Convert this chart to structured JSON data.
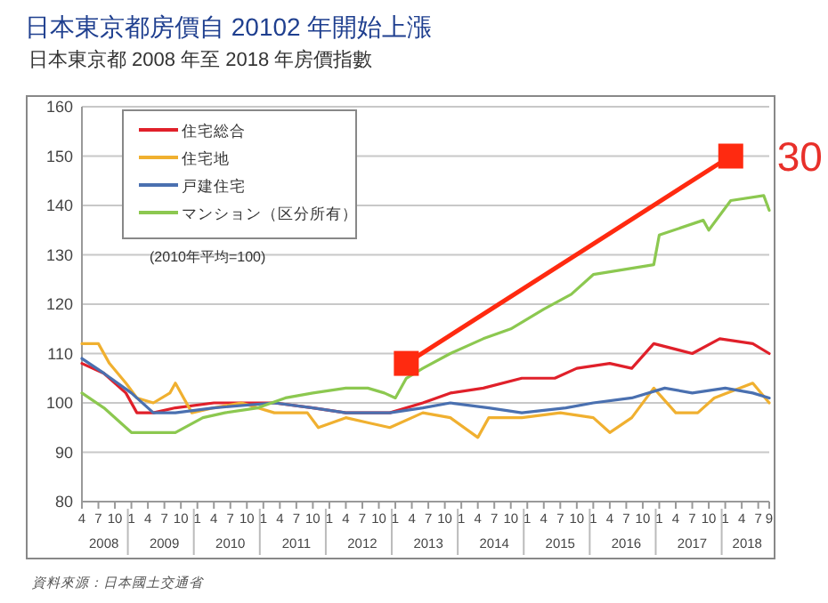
{
  "chart_data": {
    "type": "line",
    "title": "日本東京都房價自 20102 年開始上漲",
    "subtitle": "日本東京都  2008  年至 2018 年房價指數",
    "annotations": [
      "(2010年平均=100)",
      {
        "text": "30",
        "x": "2018-02",
        "y": 150
      },
      "資料來源：日本國土交通省"
    ],
    "xlim": [
      "2008-04",
      "2018-09"
    ],
    "ylim": [
      80,
      160
    ],
    "yticks": [
      80,
      90,
      100,
      110,
      120,
      130,
      140,
      150,
      160
    ],
    "xticks": [
      {
        "value": "2008-04",
        "label": "4"
      },
      {
        "value": "2008-07",
        "label": "7"
      },
      {
        "value": "2008-10",
        "label": "10"
      },
      {
        "value": "2009-01",
        "label": "1"
      },
      {
        "value": "2009-04",
        "label": "4"
      },
      {
        "value": "2009-07",
        "label": "7"
      },
      {
        "value": "2009-10",
        "label": "10"
      },
      {
        "value": "2010-01",
        "label": "1"
      },
      {
        "value": "2010-04",
        "label": "4"
      },
      {
        "value": "2010-07",
        "label": "7"
      },
      {
        "value": "2010-10",
        "label": "10"
      },
      {
        "value": "2011-01",
        "label": "1"
      },
      {
        "value": "2011-04",
        "label": "4"
      },
      {
        "value": "2011-07",
        "label": "7"
      },
      {
        "value": "2011-10",
        "label": "10"
      },
      {
        "value": "2012-01",
        "label": "1"
      },
      {
        "value": "2012-04",
        "label": "4"
      },
      {
        "value": "2012-07",
        "label": "7"
      },
      {
        "value": "2012-10",
        "label": "10"
      },
      {
        "value": "2013-01",
        "label": "1"
      },
      {
        "value": "2013-04",
        "label": "4"
      },
      {
        "value": "2013-07",
        "label": "7"
      },
      {
        "value": "2013-10",
        "label": "10"
      },
      {
        "value": "2014-01",
        "label": "1"
      },
      {
        "value": "2014-04",
        "label": "4"
      },
      {
        "value": "2014-07",
        "label": "7"
      },
      {
        "value": "2014-10",
        "label": "10"
      },
      {
        "value": "2015-01",
        "label": "1"
      },
      {
        "value": "2015-04",
        "label": "4"
      },
      {
        "value": "2015-07",
        "label": "7"
      },
      {
        "value": "2015-10",
        "label": "10"
      },
      {
        "value": "2016-01",
        "label": "1"
      },
      {
        "value": "2016-04",
        "label": "4"
      },
      {
        "value": "2016-07",
        "label": "7"
      },
      {
        "value": "2016-10",
        "label": "10"
      },
      {
        "value": "2017-01",
        "label": "1"
      },
      {
        "value": "2017-04",
        "label": "4"
      },
      {
        "value": "2017-07",
        "label": "7"
      },
      {
        "value": "2017-10",
        "label": "10"
      },
      {
        "value": "2018-01",
        "label": "1"
      },
      {
        "value": "2018-04",
        "label": "4"
      },
      {
        "value": "2018-07",
        "label": "7"
      },
      {
        "value": "2018-09",
        "label": "9"
      }
    ],
    "x2lim": [
      "2008-04",
      "2018-09"
    ],
    "x2ticks": [
      {
        "value": "2008-08",
        "label": "2008"
      },
      {
        "value": "2009-07",
        "label": "2009"
      },
      {
        "value": "2010-07",
        "label": "2010"
      },
      {
        "value": "2011-07",
        "label": "2011"
      },
      {
        "value": "2012-07",
        "label": "2012"
      },
      {
        "value": "2013-07",
        "label": "2013"
      },
      {
        "value": "2014-07",
        "label": "2014"
      },
      {
        "value": "2015-07",
        "label": "2015"
      },
      {
        "value": "2016-07",
        "label": "2016"
      },
      {
        "value": "2017-07",
        "label": "2017"
      },
      {
        "value": "2018-05",
        "label": "2018"
      }
    ],
    "grid": "y",
    "legend": "top left",
    "line_style": "solid",
    "series": [
      {
        "name": "住宅総合",
        "color": "#e0202a",
        "x": [
          "2008-04",
          "2008-08",
          "2008-12",
          "2009-02",
          "2009-05",
          "2009-09",
          "2010-04",
          "2011-03",
          "2011-10",
          "2012-04",
          "2012-12",
          "2013-06",
          "2013-11",
          "2014-05",
          "2014-12",
          "2015-06",
          "2015-10",
          "2016-04",
          "2016-08",
          "2016-12",
          "2017-07",
          "2017-12",
          "2018-06",
          "2018-09"
        ],
        "values": [
          108,
          106,
          102,
          98,
          98,
          99,
          100,
          100,
          99,
          98,
          98,
          100,
          102,
          103,
          105,
          105,
          107,
          108,
          107,
          112,
          110,
          113,
          112,
          110
        ]
      },
      {
        "name": "住宅地",
        "color": "#f0b030",
        "x": [
          "2008-04",
          "2008-07",
          "2008-09",
          "2008-12",
          "2009-02",
          "2009-05",
          "2009-08",
          "2009-09",
          "2009-12",
          "2010-04",
          "2010-09",
          "2011-03",
          "2011-09",
          "2011-11",
          "2012-04",
          "2012-08",
          "2012-12",
          "2013-06",
          "2013-11",
          "2014-04",
          "2014-06",
          "2014-12",
          "2015-07",
          "2016-01",
          "2016-04",
          "2016-08",
          "2016-12",
          "2017-04",
          "2017-08",
          "2017-11",
          "2018-06",
          "2018-09"
        ],
        "values": [
          112,
          112,
          108,
          104,
          101,
          100,
          102,
          104,
          98,
          99,
          100,
          98,
          98,
          95,
          97,
          96,
          95,
          98,
          97,
          93,
          97,
          97,
          98,
          97,
          94,
          97,
          103,
          98,
          98,
          101,
          104,
          100
        ]
      },
      {
        "name": "戸建住宅",
        "color": "#4a70b0",
        "x": [
          "2008-04",
          "2008-08",
          "2009-01",
          "2009-05",
          "2009-09",
          "2010-04",
          "2011-03",
          "2011-10",
          "2012-04",
          "2012-12",
          "2013-06",
          "2013-11",
          "2014-06",
          "2014-12",
          "2015-08",
          "2016-01",
          "2016-08",
          "2017-02",
          "2017-07",
          "2018-01",
          "2018-06",
          "2018-09"
        ],
        "values": [
          109,
          106,
          102,
          98,
          98,
          99,
          100,
          99,
          98,
          98,
          99,
          100,
          99,
          98,
          99,
          100,
          101,
          103,
          102,
          103,
          102,
          101
        ]
      },
      {
        "name": "マンション（区分所有）",
        "color": "#8cc850",
        "x": [
          "2008-04",
          "2008-08",
          "2009-01",
          "2009-05",
          "2009-09",
          "2010-02",
          "2010-06",
          "2010-12",
          "2011-05",
          "2011-10",
          "2012-04",
          "2012-08",
          "2012-11",
          "2013-01",
          "2013-03",
          "2013-06",
          "2013-11",
          "2014-05",
          "2014-10",
          "2015-04",
          "2015-09",
          "2016-01",
          "2016-12",
          "2017-01",
          "2017-09",
          "2017-10",
          "2018-02",
          "2018-08",
          "2018-09"
        ],
        "values": [
          102,
          99,
          94,
          94,
          94,
          97,
          98,
          99,
          101,
          102,
          103,
          103,
          102,
          101,
          105,
          107,
          110,
          113,
          115,
          119,
          122,
          126,
          128,
          134,
          137,
          135,
          141,
          142,
          139
        ]
      },
      {
        "type": "line",
        "color": "#ff2a10",
        "marker": "square",
        "x": [
          "2013-03",
          "2018-02"
        ],
        "values": [
          108,
          150
        ]
      }
    ]
  }
}
